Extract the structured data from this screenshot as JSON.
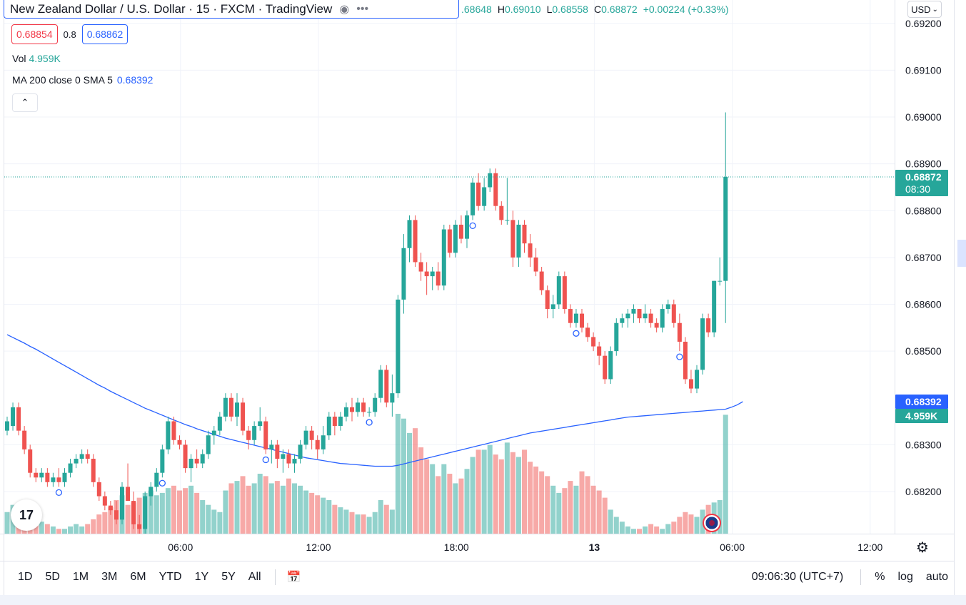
{
  "header": {
    "symbol_title": "New Zealand Dollar / U.S. Dollar · 15 · FXCM · TradingView",
    "eye_icon": "eye-icon",
    "more_icon": "more-icon",
    "more_glyph": "•••"
  },
  "ohlc": {
    "open_value": ".68648",
    "high_key": "H",
    "high_value": "0.69010",
    "low_key": "L",
    "low_value": "0.68558",
    "close_key": "C",
    "close_value": "0.68872",
    "change": "+0.00224 (+0.33%)"
  },
  "trade": {
    "sell_price": "0.68854",
    "spread": "0.8",
    "buy_price": "0.68862"
  },
  "legend": {
    "vol_label": "Vol",
    "vol_value": "4.959K",
    "ma_label": "MA 200 close 0 SMA 5",
    "ma_value": "0.68392",
    "collapse_glyph": "⌃"
  },
  "currency_select": "USD",
  "tv_logo_text": "17",
  "range_buttons": [
    "1D",
    "5D",
    "1M",
    "3M",
    "6M",
    "YTD",
    "1Y",
    "5Y",
    "All"
  ],
  "bottom_right": {
    "clock": "09:06:30 (UTC+7)",
    "percent": "%",
    "log": "log",
    "auto": "auto"
  },
  "colors": {
    "up": "#26a69a",
    "down": "#ef5350",
    "ma_line": "#2962ff",
    "price_tag": "#26a69a",
    "ma_tag": "#2962ff"
  },
  "chart_data": {
    "type": "candlestick",
    "title": "",
    "yaxis_ticks": [
      "0.69200",
      "0.69100",
      "0.69000",
      "0.68900",
      "0.68800",
      "0.68700",
      "0.68600",
      "0.68500",
      "0.68300",
      "0.68200"
    ],
    "yaxis_tick_values": [
      0.692,
      0.691,
      0.69,
      0.689,
      0.688,
      0.687,
      0.686,
      0.685,
      0.683,
      0.682
    ],
    "ylim": [
      0.6811,
      0.6925
    ],
    "xaxis_ticks": [
      "06:00",
      "12:00",
      "18:00",
      "13",
      "06:00",
      "12:00"
    ],
    "xaxis_tick_bars": [
      16,
      40,
      64,
      88,
      112,
      136
    ],
    "last_price_label": "0.68872",
    "countdown_label": "08:30",
    "ma_price_label": "0.68392",
    "volume_label": "4.959K",
    "last_price": 0.68872,
    "ma_last": 0.68392,
    "candles": [
      [
        0.6833,
        0.6836,
        0.6832,
        0.6835,
        900
      ],
      [
        0.6834,
        0.6839,
        0.6833,
        0.6838,
        1200
      ],
      [
        0.6838,
        0.6839,
        0.6832,
        0.6833,
        1000
      ],
      [
        0.6833,
        0.6834,
        0.6828,
        0.6829,
        1100
      ],
      [
        0.6829,
        0.683,
        0.6823,
        0.6824,
        700
      ],
      [
        0.6824,
        0.6825,
        0.6822,
        0.6823,
        600
      ],
      [
        0.6823,
        0.6825,
        0.6822,
        0.6824,
        500
      ],
      [
        0.6824,
        0.6825,
        0.6821,
        0.6822,
        400
      ],
      [
        0.6822,
        0.6824,
        0.6821,
        0.6823,
        300
      ],
      [
        0.6823,
        0.6825,
        0.6821,
        0.6822,
        200
      ],
      [
        0.6822,
        0.6825,
        0.6821,
        0.6824,
        200
      ],
      [
        0.6824,
        0.6827,
        0.6823,
        0.6826,
        300
      ],
      [
        0.6826,
        0.6828,
        0.6825,
        0.6827,
        400
      ],
      [
        0.6827,
        0.6829,
        0.6826,
        0.6828,
        300
      ],
      [
        0.6828,
        0.6829,
        0.6826,
        0.6827,
        400
      ],
      [
        0.6827,
        0.6828,
        0.6821,
        0.6822,
        600
      ],
      [
        0.6822,
        0.6823,
        0.6818,
        0.6819,
        800
      ],
      [
        0.6819,
        0.682,
        0.6816,
        0.6817,
        900
      ],
      [
        0.6817,
        0.6818,
        0.6815,
        0.6816,
        1100
      ],
      [
        0.6816,
        0.6818,
        0.6813,
        0.6814,
        1400
      ],
      [
        0.6814,
        0.6822,
        0.6813,
        0.6821,
        1600
      ],
      [
        0.6821,
        0.6826,
        0.6819,
        0.6818,
        1200
      ],
      [
        0.6818,
        0.682,
        0.6812,
        0.6813,
        1300
      ],
      [
        0.6813,
        0.6815,
        0.6811,
        0.6812,
        1500
      ],
      [
        0.6812,
        0.682,
        0.6811,
        0.6819,
        1700
      ],
      [
        0.6819,
        0.6822,
        0.6817,
        0.6821,
        1800
      ],
      [
        0.6821,
        0.6825,
        0.682,
        0.6824,
        1600
      ],
      [
        0.6824,
        0.683,
        0.6823,
        0.6829,
        1700
      ],
      [
        0.6829,
        0.6836,
        0.6828,
        0.6835,
        1900
      ],
      [
        0.6835,
        0.6836,
        0.683,
        0.6831,
        2000
      ],
      [
        0.6831,
        0.6832,
        0.6829,
        0.683,
        1800
      ],
      [
        0.683,
        0.6831,
        0.6824,
        0.6825,
        1900
      ],
      [
        0.6825,
        0.6828,
        0.6822,
        0.6827,
        2000
      ],
      [
        0.6827,
        0.6829,
        0.6825,
        0.6826,
        1700
      ],
      [
        0.6826,
        0.6829,
        0.6825,
        0.6828,
        1400
      ],
      [
        0.6828,
        0.6833,
        0.6827,
        0.6832,
        1200
      ],
      [
        0.6832,
        0.6834,
        0.683,
        0.6833,
        1000
      ],
      [
        0.6833,
        0.6837,
        0.6832,
        0.6836,
        900
      ],
      [
        0.6836,
        0.6841,
        0.6835,
        0.684,
        1800
      ],
      [
        0.684,
        0.6841,
        0.6835,
        0.6836,
        2100
      ],
      [
        0.6836,
        0.6841,
        0.6834,
        0.6839,
        2200
      ],
      [
        0.6839,
        0.684,
        0.6832,
        0.6833,
        2400
      ],
      [
        0.6833,
        0.6834,
        0.6829,
        0.6831,
        2000
      ],
      [
        0.6831,
        0.6835,
        0.683,
        0.6834,
        2100
      ],
      [
        0.6834,
        0.6838,
        0.6833,
        0.6835,
        2500
      ],
      [
        0.6835,
        0.6836,
        0.6828,
        0.6829,
        2400
      ],
      [
        0.6829,
        0.6831,
        0.6826,
        0.683,
        2100
      ],
      [
        0.683,
        0.6831,
        0.6825,
        0.6827,
        2200
      ],
      [
        0.6827,
        0.6829,
        0.6824,
        0.6828,
        2000
      ],
      [
        0.6828,
        0.6829,
        0.6825,
        0.6826,
        2300
      ],
      [
        0.6826,
        0.6828,
        0.6824,
        0.6827,
        2100
      ],
      [
        0.6827,
        0.6831,
        0.6826,
        0.683,
        2000
      ],
      [
        0.683,
        0.6834,
        0.6829,
        0.6833,
        1800
      ],
      [
        0.6833,
        0.6834,
        0.6829,
        0.6831,
        1700
      ],
      [
        0.6831,
        0.6832,
        0.6827,
        0.6829,
        1600
      ],
      [
        0.6829,
        0.6834,
        0.6828,
        0.6832,
        1500
      ],
      [
        0.6832,
        0.6837,
        0.6831,
        0.6836,
        1400
      ],
      [
        0.6836,
        0.6837,
        0.6832,
        0.6834,
        1200
      ],
      [
        0.6834,
        0.6837,
        0.6833,
        0.6836,
        1100
      ],
      [
        0.6836,
        0.6839,
        0.6835,
        0.6838,
        1000
      ],
      [
        0.6838,
        0.684,
        0.6835,
        0.6837,
        900
      ],
      [
        0.6837,
        0.684,
        0.6836,
        0.6839,
        800
      ],
      [
        0.6839,
        0.684,
        0.6836,
        0.6837,
        800
      ],
      [
        0.6837,
        0.6838,
        0.6836,
        0.6837,
        700
      ],
      [
        0.6837,
        0.6841,
        0.6836,
        0.684,
        900
      ],
      [
        0.684,
        0.6847,
        0.6839,
        0.6846,
        1400
      ],
      [
        0.6846,
        0.6847,
        0.6838,
        0.6839,
        1200
      ],
      [
        0.6839,
        0.6845,
        0.6836,
        0.6841,
        1000
      ],
      [
        0.6841,
        0.6862,
        0.684,
        0.6861,
        5000
      ],
      [
        0.6861,
        0.6875,
        0.6858,
        0.6872,
        4800
      ],
      [
        0.6872,
        0.6879,
        0.6869,
        0.6878,
        4200
      ],
      [
        0.6878,
        0.6879,
        0.6868,
        0.6869,
        4400
      ],
      [
        0.6869,
        0.6871,
        0.6865,
        0.6867,
        3600
      ],
      [
        0.6867,
        0.6869,
        0.6862,
        0.6866,
        3100
      ],
      [
        0.6866,
        0.6868,
        0.6863,
        0.6867,
        2900
      ],
      [
        0.6867,
        0.6869,
        0.6863,
        0.6864,
        2400
      ],
      [
        0.6864,
        0.6877,
        0.6863,
        0.6876,
        2900
      ],
      [
        0.6876,
        0.6877,
        0.687,
        0.6871,
        2500
      ],
      [
        0.6871,
        0.6878,
        0.687,
        0.6877,
        2100
      ],
      [
        0.6877,
        0.6879,
        0.6873,
        0.6874,
        2300
      ],
      [
        0.6874,
        0.688,
        0.6872,
        0.6879,
        2700
      ],
      [
        0.6879,
        0.6887,
        0.6878,
        0.6886,
        3200
      ],
      [
        0.6886,
        0.6888,
        0.688,
        0.6881,
        3500
      ],
      [
        0.6881,
        0.6887,
        0.688,
        0.6885,
        3500
      ],
      [
        0.6885,
        0.6889,
        0.6884,
        0.6888,
        3700
      ],
      [
        0.6888,
        0.6889,
        0.688,
        0.6881,
        3300
      ],
      [
        0.6881,
        0.6882,
        0.6877,
        0.6878,
        3100
      ],
      [
        0.6878,
        0.6887,
        0.6877,
        0.6878,
        3800
      ],
      [
        0.6878,
        0.688,
        0.6868,
        0.687,
        3400
      ],
      [
        0.687,
        0.6878,
        0.6868,
        0.6877,
        3200
      ],
      [
        0.6877,
        0.6878,
        0.6871,
        0.6873,
        3500
      ],
      [
        0.6873,
        0.6875,
        0.6868,
        0.687,
        3000
      ],
      [
        0.687,
        0.6872,
        0.6866,
        0.6867,
        2800
      ],
      [
        0.6867,
        0.6868,
        0.6862,
        0.6863,
        2600
      ],
      [
        0.6863,
        0.6864,
        0.6857,
        0.6859,
        2400
      ],
      [
        0.6859,
        0.6862,
        0.6857,
        0.686,
        2000
      ],
      [
        0.686,
        0.6867,
        0.6859,
        0.6866,
        1700
      ],
      [
        0.6866,
        0.6867,
        0.6858,
        0.6859,
        1900
      ],
      [
        0.6859,
        0.686,
        0.6855,
        0.6856,
        2200
      ],
      [
        0.6856,
        0.6859,
        0.6855,
        0.6858,
        2000
      ],
      [
        0.6858,
        0.6859,
        0.6854,
        0.6855,
        2600
      ],
      [
        0.6855,
        0.6856,
        0.6852,
        0.6853,
        2400
      ],
      [
        0.6853,
        0.6854,
        0.685,
        0.6851,
        2000
      ],
      [
        0.6851,
        0.6852,
        0.6847,
        0.6849,
        1800
      ],
      [
        0.6849,
        0.685,
        0.6843,
        0.6844,
        1500
      ],
      [
        0.6844,
        0.6851,
        0.6843,
        0.685,
        1000
      ],
      [
        0.685,
        0.6857,
        0.6849,
        0.6856,
        700
      ],
      [
        0.6856,
        0.6858,
        0.6855,
        0.6857,
        500
      ],
      [
        0.6857,
        0.6859,
        0.6855,
        0.6858,
        300
      ],
      [
        0.6858,
        0.686,
        0.6856,
        0.6859,
        200
      ],
      [
        0.6859,
        0.6859,
        0.6856,
        0.6857,
        200
      ],
      [
        0.6857,
        0.686,
        0.6856,
        0.6858,
        300
      ],
      [
        0.6858,
        0.6859,
        0.6855,
        0.6856,
        400
      ],
      [
        0.6856,
        0.6857,
        0.6854,
        0.6855,
        300
      ],
      [
        0.6855,
        0.686,
        0.6854,
        0.6859,
        200
      ],
      [
        0.6859,
        0.6861,
        0.6858,
        0.686,
        400
      ],
      [
        0.686,
        0.6861,
        0.6855,
        0.6856,
        500
      ],
      [
        0.6856,
        0.6858,
        0.685,
        0.6852,
        700
      ],
      [
        0.6852,
        0.6853,
        0.6843,
        0.6844,
        900
      ],
      [
        0.6844,
        0.6846,
        0.6841,
        0.6842,
        800
      ],
      [
        0.6842,
        0.6847,
        0.6841,
        0.6846,
        700
      ],
      [
        0.6846,
        0.6858,
        0.6845,
        0.6857,
        1000
      ],
      [
        0.6857,
        0.6858,
        0.6853,
        0.6854,
        1200
      ],
      [
        0.6854,
        0.6865,
        0.6853,
        0.6865,
        1300
      ],
      [
        0.6865,
        0.687,
        0.6864,
        0.6865,
        1400
      ],
      [
        0.6865,
        0.6901,
        0.6856,
        0.68872,
        4959
      ]
    ],
    "ma": [
      0.68535,
      0.68529,
      0.68523,
      0.68517,
      0.6851,
      0.68504,
      0.68497,
      0.6849,
      0.68483,
      0.68476,
      0.68469,
      0.68462,
      0.68455,
      0.68448,
      0.68441,
      0.68434,
      0.68427,
      0.68421,
      0.68414,
      0.68408,
      0.68402,
      0.68396,
      0.6839,
      0.68384,
      0.68378,
      0.68373,
      0.68368,
      0.68363,
      0.68358,
      0.68353,
      0.68348,
      0.68343,
      0.68339,
      0.68334,
      0.6833,
      0.68326,
      0.68322,
      0.68318,
      0.68314,
      0.68311,
      0.68308,
      0.68305,
      0.68302,
      0.68299,
      0.68296,
      0.68293,
      0.6829,
      0.68287,
      0.68284,
      0.68281,
      0.68278,
      0.68275,
      0.68272,
      0.6827,
      0.68268,
      0.68266,
      0.68264,
      0.68262,
      0.6826,
      0.68259,
      0.68258,
      0.68257,
      0.68256,
      0.68255,
      0.68254,
      0.68254,
      0.68254,
      0.68254,
      0.68256,
      0.68259,
      0.68262,
      0.68265,
      0.68268,
      0.68271,
      0.68274,
      0.68277,
      0.6828,
      0.68283,
      0.68286,
      0.68289,
      0.68292,
      0.68295,
      0.68298,
      0.68301,
      0.68304,
      0.68307,
      0.6831,
      0.68313,
      0.68316,
      0.68319,
      0.68322,
      0.68325,
      0.68327,
      0.68329,
      0.68331,
      0.68333,
      0.68335,
      0.68337,
      0.68339,
      0.68341,
      0.68343,
      0.68345,
      0.68347,
      0.68349,
      0.68351,
      0.68353,
      0.68355,
      0.68357,
      0.68359,
      0.6836,
      0.68361,
      0.68362,
      0.68363,
      0.68364,
      0.68365,
      0.68366,
      0.68367,
      0.68368,
      0.68369,
      0.6837,
      0.68371,
      0.68372,
      0.68373,
      0.68374,
      0.68375,
      0.68376,
      0.6838,
      0.68385,
      0.68392
    ],
    "markers_at_bars": [
      9,
      27,
      45,
      63,
      81,
      99,
      117
    ],
    "grid": true,
    "legend_position": "top-left"
  }
}
